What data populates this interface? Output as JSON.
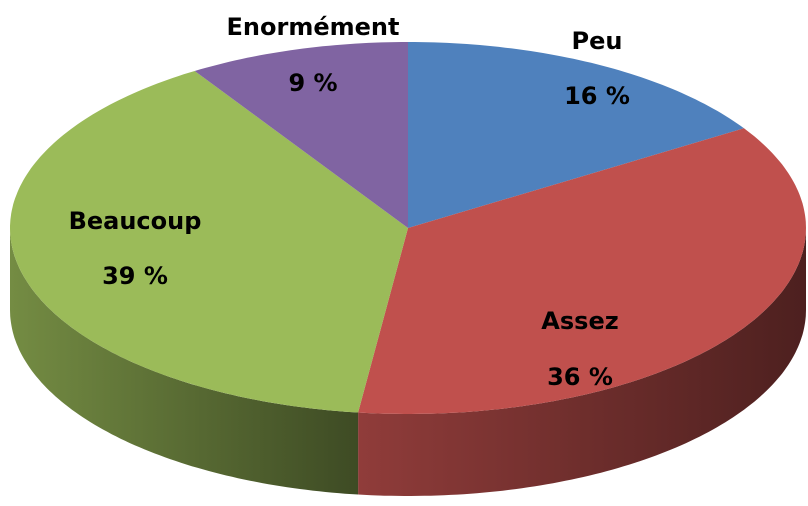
{
  "chart_data": {
    "type": "pie",
    "categories": [
      "Peu",
      "Assez",
      "Beaucoup",
      "Enormément"
    ],
    "values": [
      16,
      36,
      39,
      9
    ],
    "value_labels": [
      "16 %",
      "36 %",
      "39 %",
      "9 %"
    ],
    "colors": [
      "#4f81bd",
      "#c0504d",
      "#9bbb59",
      "#8064a2"
    ]
  }
}
